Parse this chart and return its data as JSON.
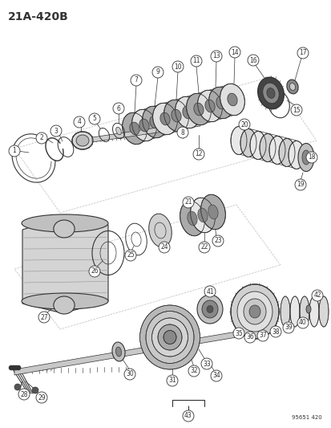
{
  "title": "21A-420B",
  "watermark": "95651 420",
  "bg_color": "#ffffff",
  "title_fontsize": 10,
  "fig_width": 4.14,
  "fig_height": 5.33,
  "dpi": 100,
  "line_color": "#333333",
  "label_fontsize": 5.5
}
